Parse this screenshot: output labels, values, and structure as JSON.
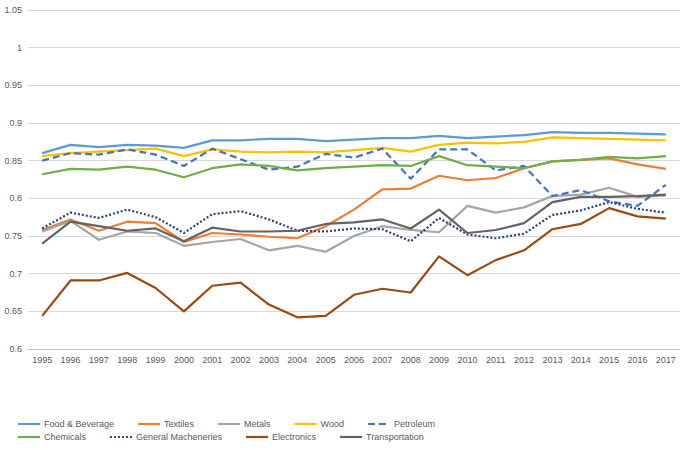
{
  "chart_data": {
    "type": "line",
    "categories": [
      "1995",
      "1996",
      "1997",
      "1998",
      "1999",
      "2000",
      "2001",
      "2002",
      "2003",
      "2004",
      "2005",
      "2006",
      "2007",
      "2008",
      "2009",
      "2010",
      "2011",
      "2012",
      "2013",
      "2014",
      "2015",
      "2016",
      "2017"
    ],
    "ylim": [
      0.6,
      1.05
    ],
    "yticks": [
      0.6,
      0.65,
      0.7,
      0.75,
      0.8,
      0.85,
      0.9,
      0.95,
      1,
      1.05
    ],
    "grid": true,
    "legend": "bottom",
    "series": [
      {
        "name": "Food & Beverage",
        "color": "#5b9bd5",
        "line_style": "solid",
        "values": [
          0.86,
          0.871,
          0.868,
          0.871,
          0.87,
          0.867,
          0.877,
          0.877,
          0.879,
          0.879,
          0.876,
          0.878,
          0.88,
          0.88,
          0.883,
          0.88,
          0.882,
          0.884,
          0.888,
          0.887,
          0.887,
          0.886,
          0.885
        ]
      },
      {
        "name": "Textiles",
        "color": "#ed7d31",
        "line_style": "solid",
        "values": [
          0.758,
          0.772,
          0.757,
          0.769,
          0.767,
          0.742,
          0.754,
          0.752,
          0.749,
          0.747,
          0.763,
          0.785,
          0.812,
          0.813,
          0.83,
          0.824,
          0.827,
          0.84,
          0.849,
          0.851,
          0.853,
          0.845,
          0.839
        ]
      },
      {
        "name": "Metals",
        "color": "#a5a5a5",
        "line_style": "solid",
        "values": [
          0.756,
          0.77,
          0.745,
          0.756,
          0.754,
          0.737,
          0.742,
          0.746,
          0.731,
          0.737,
          0.729,
          0.75,
          0.763,
          0.758,
          0.755,
          0.79,
          0.781,
          0.788,
          0.803,
          0.805,
          0.814,
          0.802,
          0.804
        ]
      },
      {
        "name": "Wood",
        "color": "#ffc000",
        "line_style": "solid",
        "values": [
          0.856,
          0.86,
          0.862,
          0.864,
          0.866,
          0.856,
          0.865,
          0.862,
          0.861,
          0.862,
          0.861,
          0.864,
          0.867,
          0.862,
          0.871,
          0.874,
          0.873,
          0.875,
          0.881,
          0.88,
          0.879,
          0.878,
          0.877
        ]
      },
      {
        "name": "Petroleum",
        "color": "#4472c4",
        "line_style": "dashed",
        "values": [
          0.85,
          0.86,
          0.858,
          0.865,
          0.858,
          0.843,
          0.866,
          0.852,
          0.838,
          0.842,
          0.859,
          0.854,
          0.866,
          0.826,
          0.865,
          0.865,
          0.837,
          0.843,
          0.803,
          0.811,
          0.796,
          0.79,
          0.818
        ]
      },
      {
        "name": "Chemicals",
        "color": "#70ad47",
        "line_style": "solid",
        "values": [
          0.832,
          0.839,
          0.838,
          0.842,
          0.838,
          0.828,
          0.84,
          0.845,
          0.843,
          0.837,
          0.84,
          0.842,
          0.844,
          0.843,
          0.856,
          0.844,
          0.842,
          0.84,
          0.849,
          0.851,
          0.855,
          0.853,
          0.856
        ]
      },
      {
        "name": "General Macheneries",
        "color": "#264478",
        "line_style": "dotted",
        "values": [
          0.76,
          0.781,
          0.774,
          0.785,
          0.775,
          0.754,
          0.779,
          0.783,
          0.772,
          0.757,
          0.756,
          0.76,
          0.759,
          0.743,
          0.774,
          0.752,
          0.747,
          0.753,
          0.778,
          0.784,
          0.795,
          0.786,
          0.781
        ]
      },
      {
        "name": "Electronics",
        "color": "#9e480e",
        "line_style": "solid",
        "values": [
          0.644,
          0.691,
          0.691,
          0.701,
          0.681,
          0.65,
          0.684,
          0.688,
          0.659,
          0.642,
          0.644,
          0.672,
          0.68,
          0.675,
          0.723,
          0.698,
          0.718,
          0.731,
          0.759,
          0.766,
          0.787,
          0.776,
          0.773
        ]
      },
      {
        "name": "Transportation",
        "color": "#636363",
        "line_style": "solid",
        "values": [
          0.74,
          0.769,
          0.763,
          0.757,
          0.76,
          0.743,
          0.761,
          0.756,
          0.756,
          0.757,
          0.766,
          0.768,
          0.772,
          0.76,
          0.785,
          0.754,
          0.758,
          0.767,
          0.795,
          0.802,
          0.802,
          0.803,
          0.805
        ]
      }
    ]
  }
}
